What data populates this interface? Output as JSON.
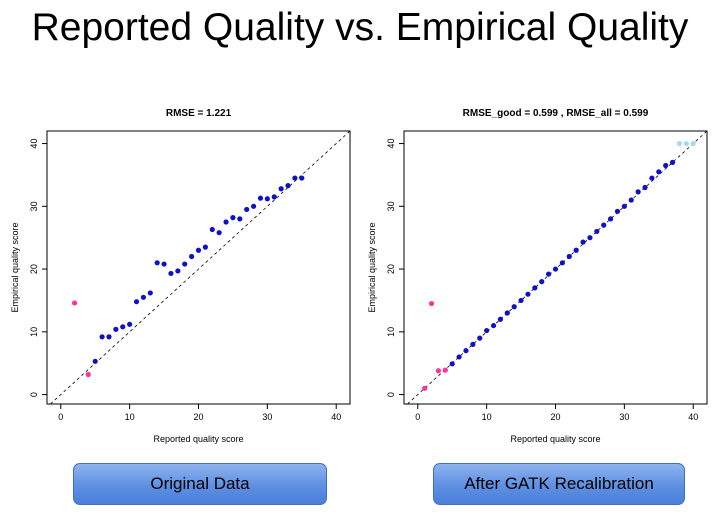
{
  "slide": {
    "title": "Reported Quality vs. Empirical Quality"
  },
  "buttons": {
    "left_label": "Original Data",
    "right_label": "After GATK Recalibration"
  },
  "chart_data": [
    {
      "type": "scatter",
      "title": "RMSE = 1.221",
      "xlabel": "Reported quality score",
      "ylabel": "Empirical quality score",
      "xlim": [
        -2,
        42
      ],
      "ylim": [
        -1.5,
        42
      ],
      "xticks": [
        0,
        10,
        20,
        30,
        40
      ],
      "yticks": [
        0,
        10,
        20,
        30,
        40
      ],
      "reference_line": "y = x (dashed)",
      "colors": {
        "good": "#1010c8",
        "outlier": "#ff3399",
        "high": "#a8d8f0"
      },
      "series": [
        {
          "role": "outlier",
          "points": [
            [
              2,
              14.6
            ],
            [
              4,
              3.2
            ]
          ]
        },
        {
          "role": "good",
          "points": [
            [
              5,
              5.3
            ],
            [
              6,
              9.2
            ],
            [
              7,
              9.2
            ],
            [
              8,
              10.4
            ],
            [
              9,
              10.8
            ],
            [
              10,
              11.2
            ],
            [
              11,
              14.8
            ],
            [
              12,
              15.5
            ],
            [
              13,
              16.2
            ],
            [
              14,
              21.0
            ],
            [
              15,
              20.8
            ],
            [
              16,
              19.3
            ],
            [
              17,
              19.7
            ],
            [
              18,
              20.8
            ],
            [
              19,
              22.0
            ],
            [
              20,
              23.0
            ],
            [
              21,
              23.5
            ],
            [
              22,
              26.3
            ],
            [
              23,
              25.8
            ],
            [
              24,
              27.5
            ],
            [
              25,
              28.2
            ],
            [
              26,
              28.0
            ],
            [
              27,
              29.5
            ],
            [
              28,
              30.0
            ],
            [
              29,
              31.3
            ],
            [
              30,
              31.2
            ],
            [
              31,
              31.5
            ],
            [
              32,
              32.8
            ],
            [
              33,
              33.3
            ],
            [
              34,
              34.5
            ],
            [
              35,
              34.5
            ]
          ]
        }
      ]
    },
    {
      "type": "scatter",
      "title": "RMSE_good = 0.599 , RMSE_all = 0.599",
      "xlabel": "Reported quality score",
      "ylabel": "Empirical quality score",
      "xlim": [
        -2,
        42
      ],
      "ylim": [
        -1.5,
        42
      ],
      "xticks": [
        0,
        10,
        20,
        30,
        40
      ],
      "yticks": [
        0,
        10,
        20,
        30,
        40
      ],
      "reference_line": "y = x (dashed)",
      "colors": {
        "good": "#1010c8",
        "outlier": "#ff3399",
        "high": "#a8d8f0"
      },
      "series": [
        {
          "role": "outlier",
          "points": [
            [
              1,
              1.0
            ],
            [
              2,
              14.5
            ],
            [
              3,
              3.8
            ],
            [
              4,
              3.9
            ]
          ]
        },
        {
          "role": "good",
          "points": [
            [
              5,
              4.9
            ],
            [
              6,
              6.0
            ],
            [
              7,
              7.0
            ],
            [
              8,
              8.0
            ],
            [
              9,
              9.0
            ],
            [
              10,
              10.2
            ],
            [
              11,
              11.0
            ],
            [
              12,
              12.0
            ],
            [
              13,
              13.0
            ],
            [
              14,
              14.0
            ],
            [
              15,
              15.0
            ],
            [
              16,
              16.0
            ],
            [
              17,
              17.0
            ],
            [
              18,
              18.0
            ],
            [
              19,
              19.2
            ],
            [
              20,
              20.0
            ],
            [
              21,
              21.0
            ],
            [
              22,
              22.0
            ],
            [
              23,
              23.0
            ],
            [
              24,
              24.3
            ],
            [
              25,
              25.0
            ],
            [
              26,
              26.0
            ],
            [
              27,
              27.0
            ],
            [
              28,
              28.0
            ],
            [
              29,
              29.2
            ],
            [
              30,
              30.0
            ],
            [
              31,
              31.0
            ],
            [
              32,
              32.3
            ],
            [
              33,
              33.0
            ],
            [
              34,
              34.5
            ],
            [
              35,
              35.5
            ],
            [
              36,
              36.5
            ],
            [
              37,
              37.0
            ]
          ]
        },
        {
          "role": "high",
          "points": [
            [
              38,
              40.0
            ],
            [
              39,
              40.0
            ],
            [
              40,
              40.0
            ]
          ]
        }
      ]
    }
  ]
}
